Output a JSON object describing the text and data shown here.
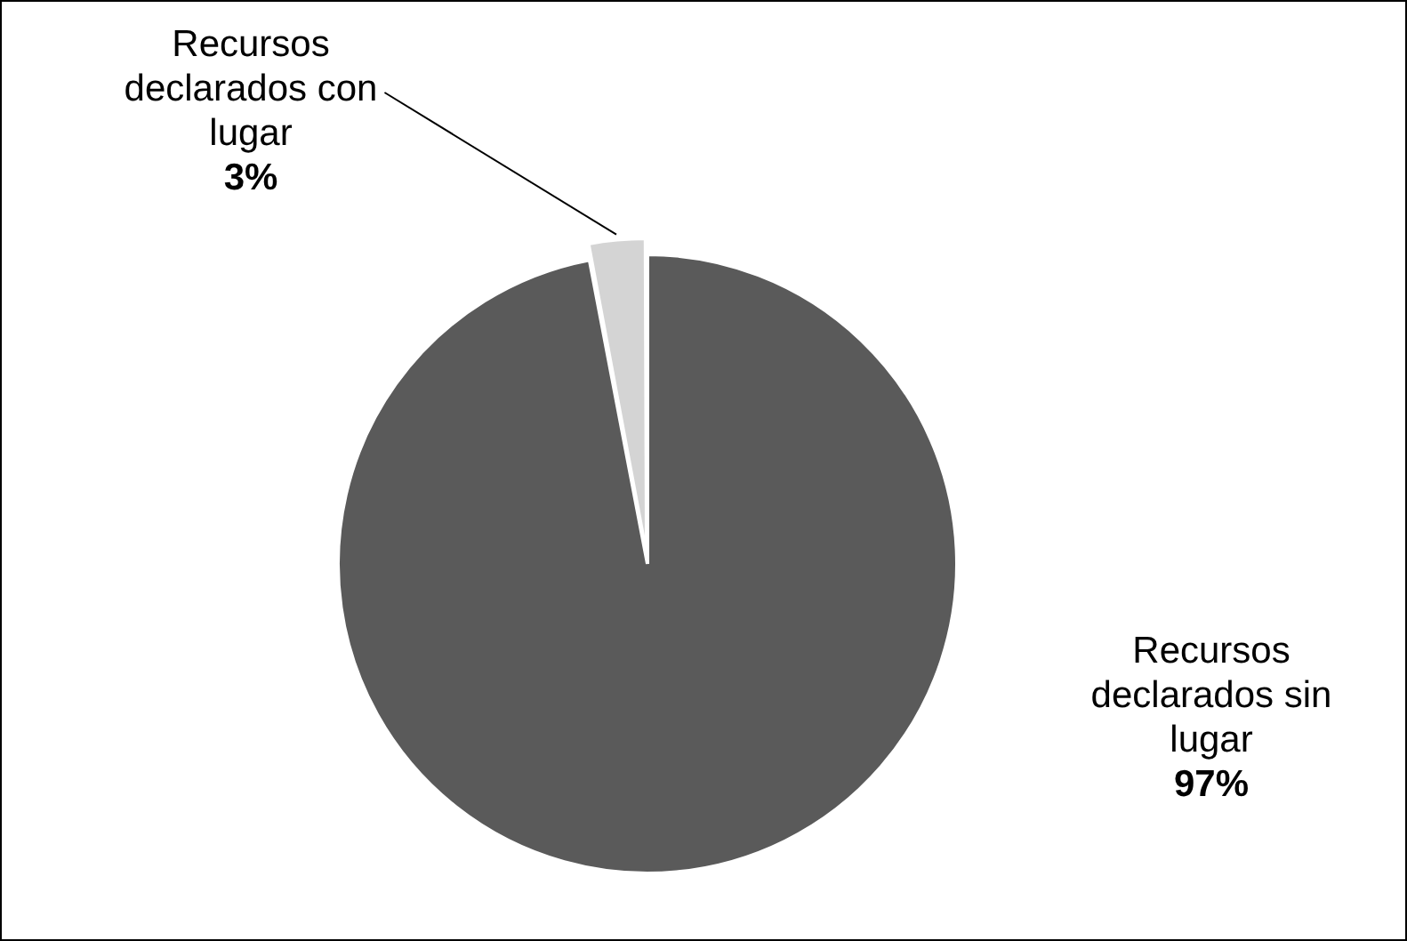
{
  "chart_data": {
    "type": "pie",
    "categories": [
      "Recursos declarados sin lugar",
      "Recursos declarados con lugar"
    ],
    "values": [
      97,
      3
    ],
    "value_labels": [
      "97%",
      "3%"
    ],
    "colors": [
      "#5a5a5a",
      "#d4d4d4"
    ],
    "legend": false
  }
}
